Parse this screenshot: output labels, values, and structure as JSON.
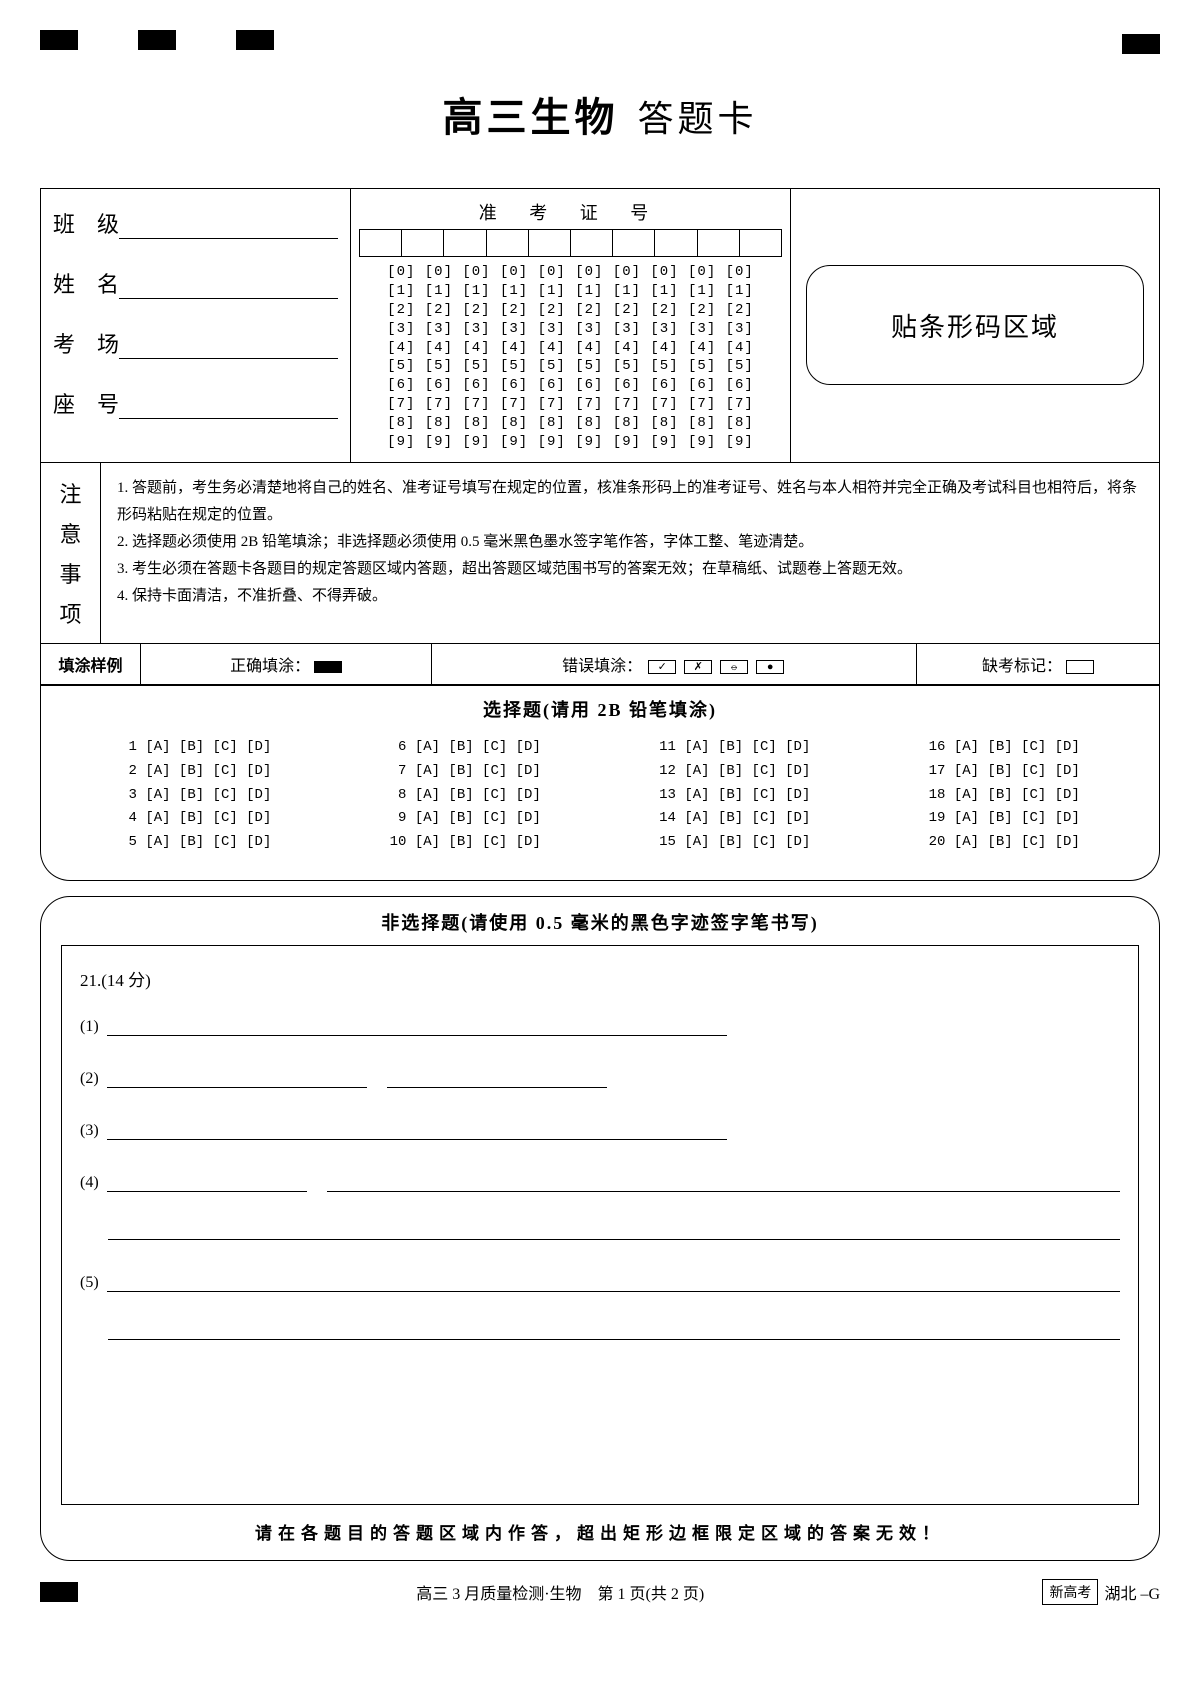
{
  "title": {
    "main": "高三生物",
    "sub": "答题卡"
  },
  "fields": {
    "class": "班　级",
    "name": "姓　名",
    "room": "考　场",
    "seat": "座　号"
  },
  "id": {
    "title": "准 考 证 号",
    "columns": 10,
    "digits": [
      "0",
      "1",
      "2",
      "3",
      "4",
      "5",
      "6",
      "7",
      "8",
      "9"
    ]
  },
  "barcode": {
    "label": "贴条形码区域"
  },
  "notice": {
    "label": [
      "注",
      "意",
      "事",
      "项"
    ],
    "items": [
      "1. 答题前，考生务必清楚地将自己的姓名、准考证号填写在规定的位置，核准条形码上的准考证号、姓名与本人相符并完全正确及考试科目也相符后，将条形码粘贴在规定的位置。",
      "2. 选择题必须使用 2B 铅笔填涂；非选择题必须使用 0.5 毫米黑色墨水签字笔作答，字体工整、笔迹清楚。",
      "3. 考生必须在答题卡各题目的规定答题区域内答题，超出答题区域范围书写的答案无效；在草稿纸、试题卷上答题无效。",
      "4. 保持卡面清洁，不准折叠、不得弄破。"
    ]
  },
  "example": {
    "label": "填涂样例",
    "correct": "正确填涂：",
    "wrong": "错误填涂：",
    "wrong_marks": [
      "✓",
      "✗",
      "⦵",
      "●"
    ],
    "absent": "缺考标记："
  },
  "mc": {
    "title": "选择题(请用 2B 铅笔填涂)",
    "options": "[A] [B] [C] [D]",
    "count": 20
  },
  "frq": {
    "title": "非选择题(请使用 0.5 毫米的黑色字迹签字笔书写)",
    "q21": "21.(14 分)",
    "subs": [
      "(1)",
      "(2)",
      "(3)",
      "(4)",
      "(5)"
    ],
    "warning": "请在各题目的答题区域内作答，超出矩形边框限定区域的答案无效！"
  },
  "footer": {
    "center": "高三 3 月质量检测·生物　第 1 页(共 2 页)",
    "tag": "新高考",
    "region": "湖北 –G"
  }
}
